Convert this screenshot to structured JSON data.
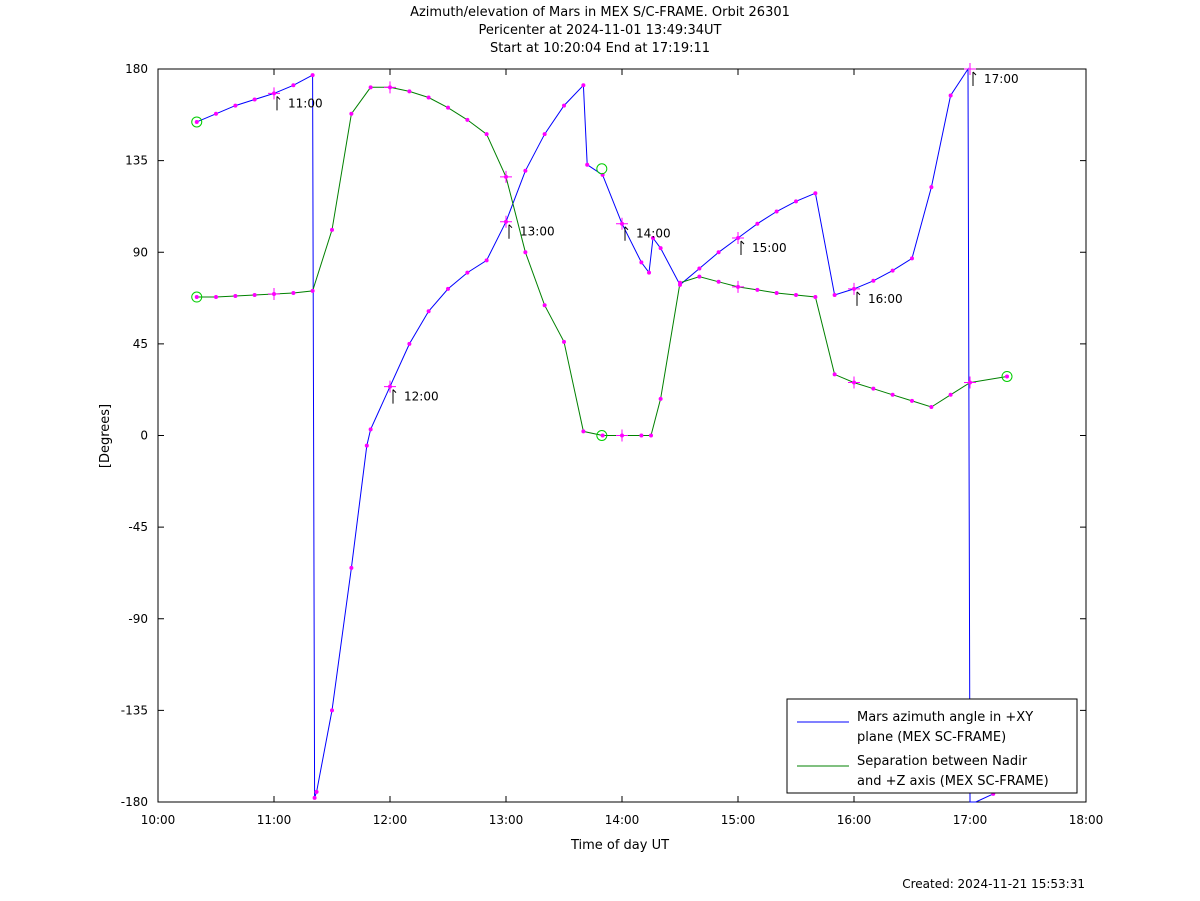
{
  "chart_data": {
    "type": "line",
    "title": "Azimuth/elevation of Mars in MEX S/C-FRAME.  Orbit 26301",
    "subtitle_1": "Pericenter at 2024-11-01 13:49:34UT",
    "subtitle_2": "Start at 10:20:04 End at 17:19:11",
    "xlabel": "Time of day UT",
    "ylabel": "[Degrees]",
    "xlim": [
      10,
      18
    ],
    "ylim": [
      -180,
      180
    ],
    "x_ticks": [
      {
        "value": 10,
        "label": "10:00"
      },
      {
        "value": 11,
        "label": "11:00"
      },
      {
        "value": 12,
        "label": "12:00"
      },
      {
        "value": 13,
        "label": "13:00"
      },
      {
        "value": 14,
        "label": "14:00"
      },
      {
        "value": 15,
        "label": "15:00"
      },
      {
        "value": 16,
        "label": "16:00"
      },
      {
        "value": 17,
        "label": "17:00"
      },
      {
        "value": 18,
        "label": "18:00"
      }
    ],
    "y_ticks": [
      {
        "value": 180,
        "label": "180"
      },
      {
        "value": 135,
        "label": "135"
      },
      {
        "value": 90,
        "label": "90"
      },
      {
        "value": 45,
        "label": "45"
      },
      {
        "value": 0,
        "label": "0"
      },
      {
        "value": -45,
        "label": "-45"
      },
      {
        "value": -90,
        "label": "-90"
      },
      {
        "value": -135,
        "label": "-135"
      },
      {
        "value": -180,
        "label": "-180"
      }
    ],
    "grid": false,
    "legend_position": "bottom-right",
    "series": [
      {
        "name_line1": "Mars azimuth angle in +XY",
        "name_line2": "plane (MEX SC-FRAME)",
        "color": "#0000ff",
        "x": [
          10.334,
          10.5,
          10.667,
          10.833,
          11.0,
          11.167,
          11.333,
          11.35,
          11.367,
          11.5,
          11.667,
          11.8,
          11.833,
          12.0,
          12.167,
          12.333,
          12.5,
          12.667,
          12.833,
          13.0,
          13.167,
          13.333,
          13.5,
          13.667,
          13.7,
          13.833,
          14.0,
          14.167,
          14.233,
          14.267,
          14.333,
          14.5,
          14.667,
          14.833,
          15.0,
          15.167,
          15.333,
          15.5,
          15.667,
          15.833,
          16.0,
          16.167,
          16.333,
          16.5,
          16.667,
          16.833,
          16.983,
          17.0,
          17.05,
          17.2,
          17.319
        ],
        "y": [
          154,
          158,
          162,
          165,
          168,
          172,
          177,
          -178,
          -175,
          -135,
          -65,
          -5,
          3,
          24,
          45,
          61,
          72,
          80,
          86,
          105,
          130,
          148,
          162,
          172,
          133,
          128,
          104,
          85,
          80,
          97,
          92,
          74,
          82,
          90,
          97,
          104,
          110,
          115,
          119,
          69,
          72,
          76,
          81,
          87,
          122,
          167,
          180,
          -180,
          -180,
          -176,
          -173
        ]
      },
      {
        "name_line1": "Separation between Nadir",
        "name_line2": "and +Z axis (MEX SC-FRAME)",
        "color": "#008000",
        "x": [
          10.334,
          10.5,
          10.667,
          10.833,
          11.0,
          11.167,
          11.333,
          11.5,
          11.667,
          11.833,
          12.0,
          12.167,
          12.333,
          12.5,
          12.667,
          12.833,
          13.0,
          13.167,
          13.333,
          13.5,
          13.667,
          13.833,
          14.0,
          14.167,
          14.25,
          14.333,
          14.5,
          14.667,
          14.833,
          15.0,
          15.167,
          15.333,
          15.5,
          15.667,
          15.833,
          16.0,
          16.167,
          16.333,
          16.5,
          16.667,
          16.833,
          17.0,
          17.319
        ],
        "y": [
          68,
          68,
          68.5,
          69,
          69.5,
          70,
          71,
          101,
          158,
          171,
          171,
          169,
          166,
          161,
          155,
          148,
          127,
          90,
          64,
          46,
          2,
          0,
          0,
          0,
          0,
          18,
          75,
          78,
          75.5,
          73,
          71.5,
          70,
          69,
          68,
          30,
          26,
          23,
          20,
          17,
          14,
          20,
          26,
          29
        ]
      }
    ],
    "markers": {
      "start": [
        {
          "series": 0,
          "x": 10.334,
          "y": 154
        },
        {
          "series": 1,
          "x": 10.334,
          "y": 68
        }
      ],
      "pericenter": [
        {
          "series": 0,
          "x": 13.826,
          "y": 131
        },
        {
          "series": 1,
          "x": 13.826,
          "y": 0
        }
      ],
      "end": [
        {
          "series": 1,
          "x": 17.319,
          "y": 29
        }
      ],
      "hour_crosses": [
        {
          "x": 11.0,
          "y": 168
        },
        {
          "x": 11.0,
          "y": 69.5
        },
        {
          "x": 12.0,
          "y": 24
        },
        {
          "x": 12.0,
          "y": 171
        },
        {
          "x": 13.0,
          "y": 105
        },
        {
          "x": 13.0,
          "y": 127
        },
        {
          "x": 14.0,
          "y": 104
        },
        {
          "x": 14.0,
          "y": 0
        },
        {
          "x": 15.0,
          "y": 97
        },
        {
          "x": 15.0,
          "y": 73
        },
        {
          "x": 16.0,
          "y": 72
        },
        {
          "x": 16.0,
          "y": 26
        },
        {
          "x": 17.0,
          "y": 180
        },
        {
          "x": 17.0,
          "y": 26
        }
      ]
    },
    "annotations": [
      {
        "x": 11.0,
        "y": 168,
        "label": "11:00"
      },
      {
        "x": 12.0,
        "y": 24,
        "label": "12:00"
      },
      {
        "x": 13.0,
        "y": 105,
        "label": "13:00"
      },
      {
        "x": 14.0,
        "y": 104,
        "label": "14:00"
      },
      {
        "x": 15.0,
        "y": 97,
        "label": "15:00"
      },
      {
        "x": 16.0,
        "y": 72,
        "label": "16:00"
      },
      {
        "x": 17.0,
        "y": 180,
        "label": "17:00"
      }
    ]
  },
  "footer": {
    "created": "Created: 2024-11-21 15:53:31"
  }
}
